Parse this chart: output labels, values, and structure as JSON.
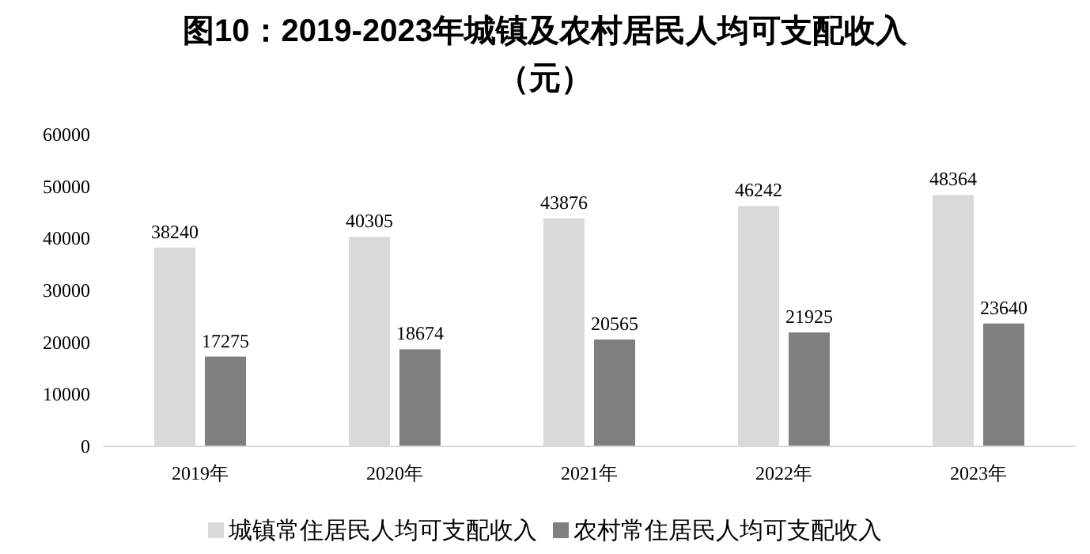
{
  "chart_data": {
    "type": "bar",
    "title": "图10：2019-2023年城镇及农村居民人均可支配收入",
    "subtitle": "（元）",
    "categories": [
      "2019年",
      "2020年",
      "2021年",
      "2022年",
      "2023年"
    ],
    "series": [
      {
        "name": "城镇常住居民人均可支配收入",
        "color": "#d9d9d9",
        "values": [
          38240,
          40305,
          43876,
          46242,
          48364
        ]
      },
      {
        "name": "农村常住居民人均可支配收入",
        "color": "#7f7f7f",
        "values": [
          17275,
          18674,
          20565,
          21925,
          23640
        ]
      }
    ],
    "ylim": [
      0,
      60000
    ],
    "yticks": [
      0,
      10000,
      20000,
      30000,
      40000,
      50000,
      60000
    ],
    "grid": false,
    "legend": "bottom",
    "data_labels": true
  }
}
